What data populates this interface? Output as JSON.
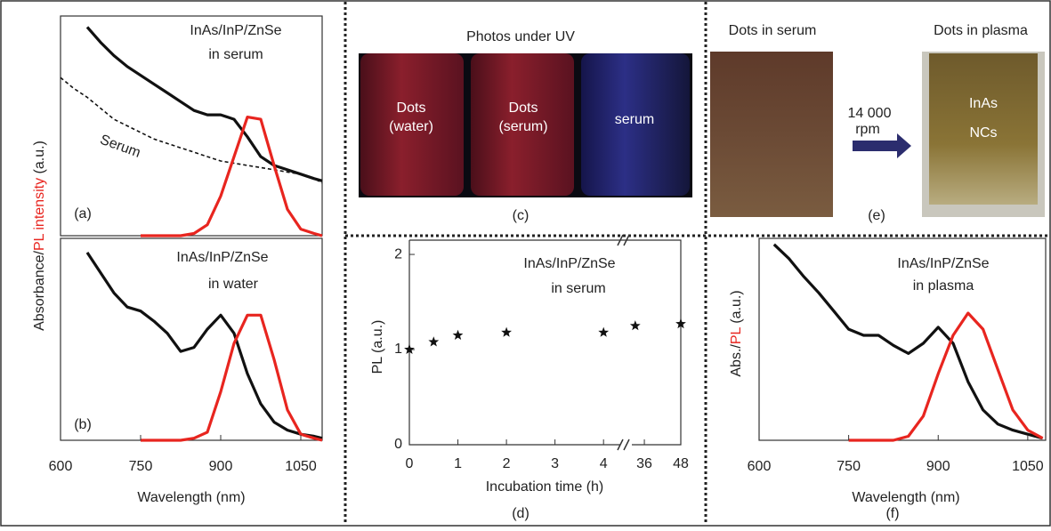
{
  "chart_data": [
    {
      "type": "line",
      "panel_label": "(a)",
      "annotations": [
        "InAs/InP/ZnSe",
        "in serum"
      ],
      "ylabel_parts": [
        {
          "text": "Absorbance/",
          "color": "#222222"
        },
        {
          "text": "PL intensity",
          "color": "#e8251f"
        },
        {
          "text": " (a.u.)",
          "color": "#222222"
        }
      ],
      "xlim": [
        600,
        1090
      ],
      "ylim": [
        0,
        1
      ],
      "x": [
        600,
        625,
        650,
        675,
        700,
        725,
        750,
        775,
        800,
        825,
        850,
        875,
        900,
        925,
        950,
        975,
        1000,
        1025,
        1050,
        1075,
        1090
      ],
      "series": [
        {
          "color": "#111111",
          "dash": false,
          "values": [
            null,
            null,
            0.95,
            0.88,
            0.82,
            0.77,
            0.73,
            0.69,
            0.65,
            0.61,
            0.57,
            0.55,
            0.55,
            0.53,
            0.45,
            0.36,
            0.32,
            0.3,
            0.28,
            0.26,
            0.25
          ]
        },
        {
          "color": "#111111",
          "dash": true,
          "label": "Serum",
          "values": [
            0.72,
            0.67,
            0.63,
            0.58,
            0.53,
            0.5,
            0.47,
            0.44,
            0.42,
            0.4,
            0.38,
            0.36,
            0.34,
            0.33,
            0.32,
            0.31,
            0.3,
            0.29,
            0.28,
            0.26,
            0.24
          ]
        },
        {
          "color": "#e8251f",
          "dash": false,
          "values": [
            null,
            null,
            null,
            null,
            null,
            null,
            0,
            0,
            0,
            0,
            0.01,
            0.05,
            0.18,
            0.36,
            0.54,
            0.53,
            0.32,
            0.12,
            0.03,
            0.01,
            0
          ]
        }
      ]
    },
    {
      "type": "line",
      "panel_label": "(b)",
      "annotations": [
        "InAs/InP/ZnSe",
        "in water"
      ],
      "xlabel": "Wavelength (nm)",
      "xlim": [
        600,
        1090
      ],
      "ylim": [
        0,
        1
      ],
      "xticks": [
        600,
        750,
        900,
        1050
      ],
      "x": [
        600,
        625,
        650,
        675,
        700,
        725,
        750,
        775,
        800,
        825,
        850,
        875,
        900,
        925,
        950,
        975,
        1000,
        1025,
        1050,
        1075,
        1090
      ],
      "series": [
        {
          "color": "#111111",
          "dash": false,
          "values": [
            null,
            null,
            0.93,
            0.83,
            0.73,
            0.66,
            0.64,
            0.59,
            0.53,
            0.44,
            0.46,
            0.55,
            0.62,
            0.53,
            0.33,
            0.18,
            0.09,
            0.05,
            0.03,
            0.02,
            0.01
          ]
        },
        {
          "color": "#e8251f",
          "dash": false,
          "values": [
            null,
            null,
            null,
            null,
            null,
            null,
            0,
            0,
            0,
            0,
            0.01,
            0.04,
            0.24,
            0.48,
            0.62,
            0.62,
            0.4,
            0.15,
            0.03,
            0.01,
            0
          ]
        }
      ]
    },
    {
      "type": "scatter",
      "panel_label": "(d)",
      "annotations": [
        "InAs/InP/ZnSe",
        "in serum"
      ],
      "xlabel": "Incubation time (h)",
      "ylabel": "PL (a.u.)",
      "xlim": [
        0,
        48
      ],
      "xbreak": [
        4.4,
        31
      ],
      "ylim": [
        0,
        2.15
      ],
      "xticks": [
        0,
        1,
        2,
        3,
        4,
        36,
        48
      ],
      "yticks": [
        0,
        1,
        2
      ],
      "color": "#111111",
      "x": [
        0,
        0.5,
        1,
        2,
        4,
        33,
        48
      ],
      "values": [
        1.0,
        1.08,
        1.15,
        1.18,
        1.18,
        1.25,
        1.27
      ]
    },
    {
      "type": "line",
      "panel_label": "(f)",
      "annotations": [
        "InAs/InP/ZnSe",
        "in plasma"
      ],
      "xlabel": "Wavelength (nm)",
      "ylabel_parts": [
        {
          "text": "Abs./",
          "color": "#222222"
        },
        {
          "text": "PL",
          "color": "#e8251f"
        },
        {
          "text": " (a.u.)",
          "color": "#222222"
        }
      ],
      "xlim": [
        600,
        1080
      ],
      "ylim": [
        0,
        1
      ],
      "xticks": [
        600,
        750,
        900,
        1050
      ],
      "x": [
        600,
        625,
        650,
        675,
        700,
        725,
        750,
        775,
        800,
        825,
        850,
        875,
        900,
        925,
        950,
        975,
        1000,
        1025,
        1050,
        1075
      ],
      "series": [
        {
          "color": "#111111",
          "dash": false,
          "values": [
            null,
            0.97,
            0.9,
            0.81,
            0.73,
            0.64,
            0.55,
            0.52,
            0.52,
            0.47,
            0.43,
            0.48,
            0.56,
            0.48,
            0.29,
            0.15,
            0.08,
            0.05,
            0.03,
            0.01
          ]
        },
        {
          "color": "#e8251f",
          "dash": false,
          "values": [
            null,
            null,
            null,
            null,
            null,
            null,
            0,
            0,
            0,
            0,
            0.02,
            0.12,
            0.33,
            0.52,
            0.63,
            0.55,
            0.35,
            0.15,
            0.05,
            0.01
          ]
        }
      ]
    }
  ],
  "photo_panels": {
    "c": {
      "title": "Photos under UV",
      "tubes": [
        [
          "Dots",
          "(water)"
        ],
        [
          "Dots",
          "(serum)"
        ],
        [
          "serum"
        ]
      ],
      "panel_label": "(c)"
    },
    "e": {
      "captions": [
        "Dots in serum",
        "Dots in plasma"
      ],
      "arrow_label": [
        "14 000",
        "rpm"
      ],
      "pellet_label": [
        "InAs",
        "NCs"
      ],
      "panel_label": "(e)"
    }
  }
}
